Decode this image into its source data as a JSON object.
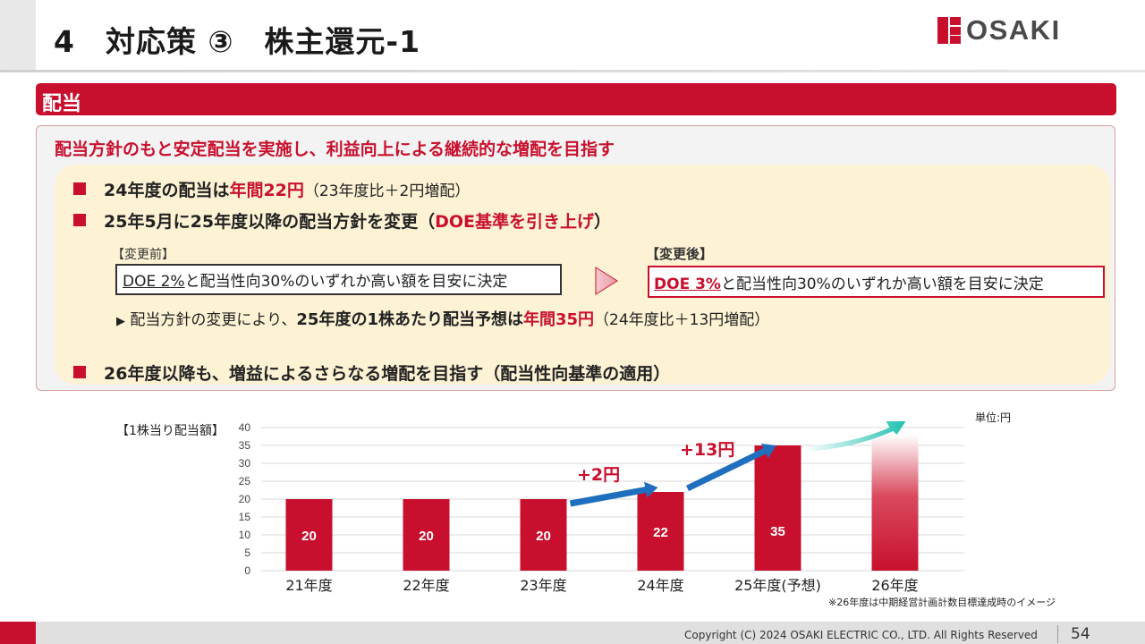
{
  "page": {
    "title": "4　対応策 ③　株主還元-1",
    "logo_text": "OSAKI",
    "number": "54",
    "copyright": "Copyright (C) 2024 OSAKI ELECTRIC CO., LTD. All Rights Reserved"
  },
  "section": {
    "label": "配当",
    "headline": "配当方針のもと安定配当を実施し、利益向上による継続的な増配を目指す",
    "bullet1": {
      "prefix": "24年度の配当は",
      "highlight": "年間22円",
      "note": "（23年度比＋2円増配）"
    },
    "bullet2": {
      "prefix": "25年5月に25年度以降の配当方針を変更（",
      "highlight": "DOE基準を引き上げ",
      "suffix": "）"
    },
    "before": {
      "label": "【変更前】",
      "doe": "DOE 2%",
      "text": "と配当性向30%のいずれか高い額を目安に決定"
    },
    "after": {
      "label": "【変更後】",
      "doe": "DOE 3%",
      "text": "と配当性向30%のいずれか高い額を目安に決定"
    },
    "sub_bullet": {
      "marker": "▶",
      "prefix": "配当方針の変更により、",
      "bold": "25年度の1株あたり配当予想は",
      "highlight": "年間35円",
      "note": "（24年度比＋13円増配）"
    },
    "bullet3": {
      "text": "26年度以降も、増益によるさらなる増配を目指す（配当性向基準の適用）"
    }
  },
  "chart_data": {
    "type": "bar",
    "title": "【1株当り配当額】",
    "unit": "単位:円",
    "categories": [
      "21年度",
      "22年度",
      "23年度",
      "24年度",
      "25年度(予想)",
      "26年度"
    ],
    "values": [
      20,
      20,
      20,
      22,
      35,
      null
    ],
    "data_labels": [
      "20",
      "20",
      "20",
      "22",
      "35",
      ""
    ],
    "ylim": [
      0,
      40
    ],
    "yticks": [
      0,
      5,
      10,
      15,
      20,
      25,
      30,
      35,
      40
    ],
    "grid": true,
    "annotations": [
      "+2円",
      "+13円"
    ],
    "footnote": "※26年度は中期経営計画計数目標達成時のイメージ",
    "colors": {
      "bar": "#c8102e",
      "arrow": "#1f6fbf",
      "future_arrow": "#2ec4b6",
      "annotation": "#c8102e"
    }
  }
}
